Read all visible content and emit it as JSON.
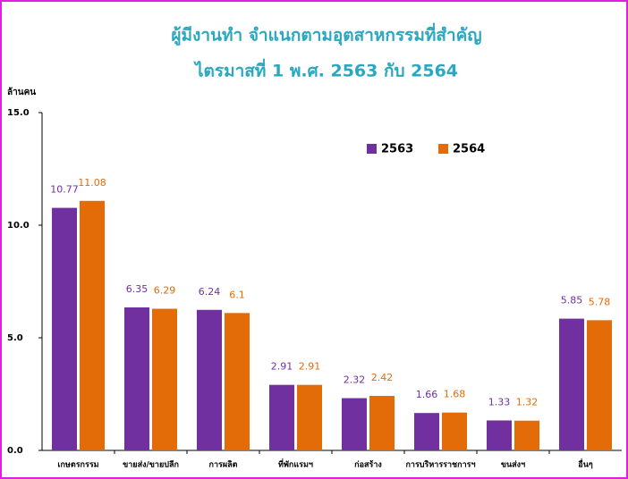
{
  "chart_data": {
    "type": "bar",
    "title": "ผู้มีงานทำ จำแนกตามอุตสาหกรรมที่สำคัญ",
    "subtitle": "ไตรมาสที่ 1 พ.ศ. 2563 กับ 2564",
    "y_label": "ล้านคน",
    "categories": [
      "เกษตรกรรม",
      "ขายส่ง/ขายปลีก",
      "การผลิต",
      "ที่พักแรมฯ",
      "ก่อสร้าง",
      "การบริหารราชการฯ",
      "ขนส่งฯ",
      "อื่นๆ"
    ],
    "series": [
      {
        "name": "2563",
        "color": "#7030a0",
        "values": [
          10.77,
          6.35,
          6.24,
          2.91,
          2.32,
          1.66,
          1.33,
          5.85
        ]
      },
      {
        "name": "2564",
        "color": "#e36c09",
        "values": [
          11.08,
          6.29,
          6.1,
          2.91,
          2.42,
          1.68,
          1.32,
          5.78
        ]
      }
    ],
    "ylim": [
      0,
      15
    ],
    "yticks": [
      {
        "value": 0,
        "label": "0.0"
      },
      {
        "value": 5,
        "label": "5.0"
      },
      {
        "value": 10,
        "label": "10.0"
      },
      {
        "value": 15,
        "label": "15.0"
      }
    ],
    "grid": false,
    "legend": "top-right"
  }
}
